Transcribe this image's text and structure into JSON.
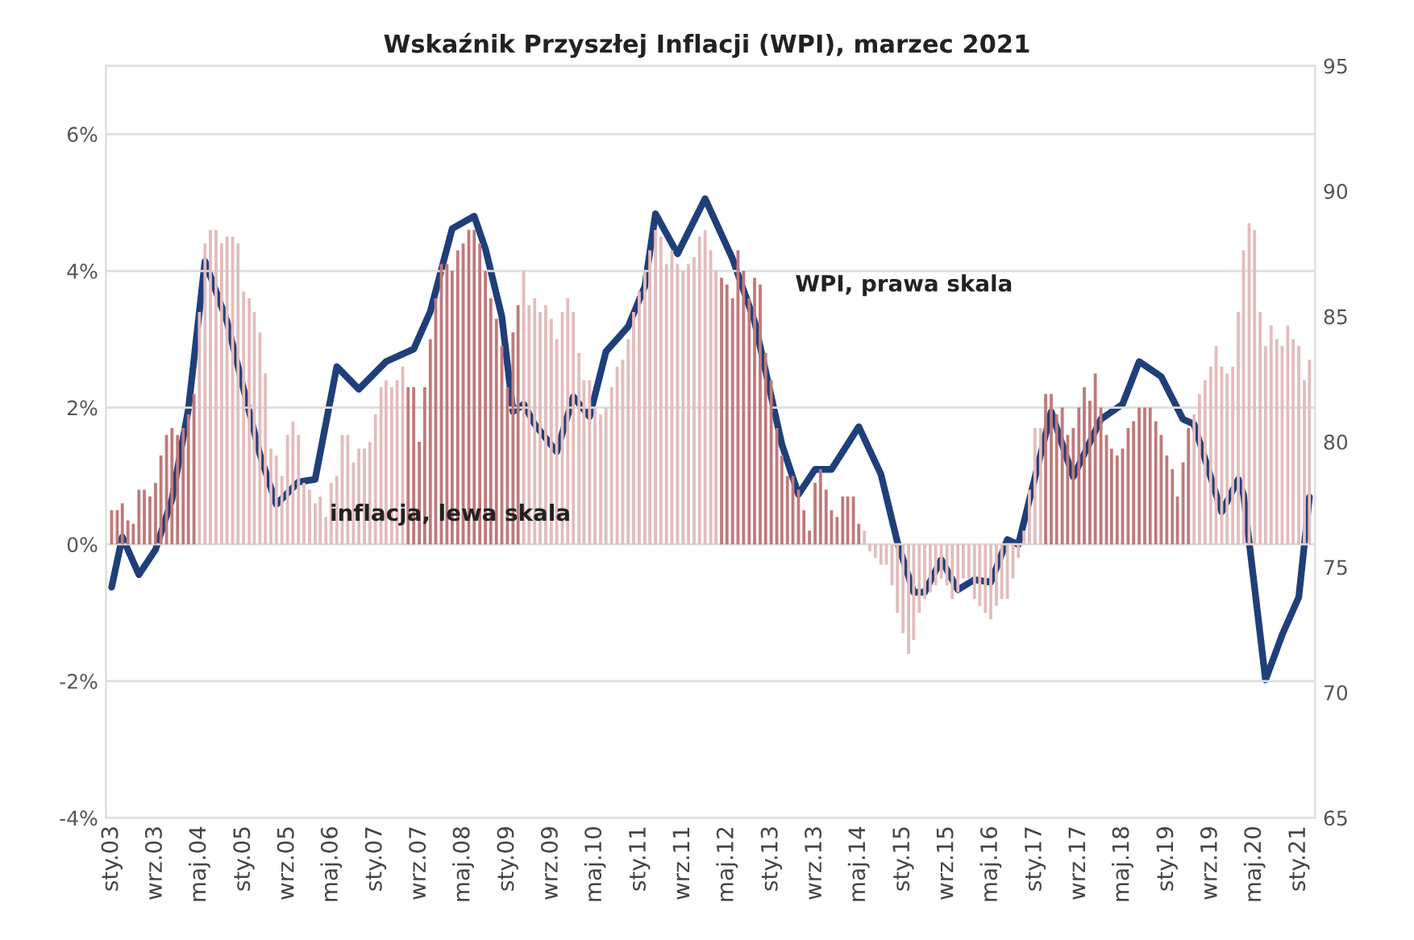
{
  "chart_data": {
    "type": "bar",
    "title": "Wskaźnik Przyszłej Inflacji (WPI), marzec 2021",
    "x": [
      "2003-01",
      "2003-02",
      "2003-03",
      "2003-04",
      "2003-05",
      "2003-06",
      "2003-07",
      "2003-08",
      "2003-09",
      "2003-10",
      "2003-11",
      "2003-12",
      "2004-01",
      "2004-02",
      "2004-03",
      "2004-04",
      "2004-05",
      "2004-06",
      "2004-07",
      "2004-08",
      "2004-09",
      "2004-10",
      "2004-11",
      "2004-12",
      "2005-01",
      "2005-02",
      "2005-03",
      "2005-04",
      "2005-05",
      "2005-06",
      "2005-07",
      "2005-08",
      "2005-09",
      "2005-10",
      "2005-11",
      "2005-12",
      "2006-01",
      "2006-02",
      "2006-03",
      "2006-04",
      "2006-05",
      "2006-06",
      "2006-07",
      "2006-08",
      "2006-09",
      "2006-10",
      "2006-11",
      "2006-12",
      "2007-01",
      "2007-02",
      "2007-03",
      "2007-04",
      "2007-05",
      "2007-06",
      "2007-07",
      "2007-08",
      "2007-09",
      "2007-10",
      "2007-11",
      "2007-12",
      "2008-01",
      "2008-02",
      "2008-03",
      "2008-04",
      "2008-05",
      "2008-06",
      "2008-07",
      "2008-08",
      "2008-09",
      "2008-10",
      "2008-11",
      "2008-12",
      "2009-01",
      "2009-02",
      "2009-03",
      "2009-04",
      "2009-05",
      "2009-06",
      "2009-07",
      "2009-08",
      "2009-09",
      "2009-10",
      "2009-11",
      "2009-12",
      "2010-01",
      "2010-02",
      "2010-03",
      "2010-04",
      "2010-05",
      "2010-06",
      "2010-07",
      "2010-08",
      "2010-09",
      "2010-10",
      "2010-11",
      "2010-12",
      "2011-01",
      "2011-02",
      "2011-03",
      "2011-04",
      "2011-05",
      "2011-06",
      "2011-07",
      "2011-08",
      "2011-09",
      "2011-10",
      "2011-11",
      "2011-12",
      "2012-01",
      "2012-02",
      "2012-03",
      "2012-04",
      "2012-05",
      "2012-06",
      "2012-07",
      "2012-08",
      "2012-09",
      "2012-10",
      "2012-11",
      "2012-12",
      "2013-01",
      "2013-02",
      "2013-03",
      "2013-04",
      "2013-05",
      "2013-06",
      "2013-07",
      "2013-08",
      "2013-09",
      "2013-10",
      "2013-11",
      "2013-12",
      "2014-01",
      "2014-02",
      "2014-03",
      "2014-04",
      "2014-05",
      "2014-06",
      "2014-07",
      "2014-08",
      "2014-09",
      "2014-10",
      "2014-11",
      "2014-12",
      "2015-01",
      "2015-02",
      "2015-03",
      "2015-04",
      "2015-05",
      "2015-06",
      "2015-07",
      "2015-08",
      "2015-09",
      "2015-10",
      "2015-11",
      "2015-12",
      "2016-01",
      "2016-02",
      "2016-03",
      "2016-04",
      "2016-05",
      "2016-06",
      "2016-07",
      "2016-08",
      "2016-09",
      "2016-10",
      "2016-11",
      "2016-12",
      "2017-01",
      "2017-02",
      "2017-03",
      "2017-04",
      "2017-05",
      "2017-06",
      "2017-07",
      "2017-08",
      "2017-09",
      "2017-10",
      "2017-11",
      "2017-12",
      "2018-01",
      "2018-02",
      "2018-03",
      "2018-04",
      "2018-05",
      "2018-06",
      "2018-07",
      "2018-08",
      "2018-09",
      "2018-10",
      "2018-11",
      "2018-12",
      "2019-01",
      "2019-02",
      "2019-03",
      "2019-04",
      "2019-05",
      "2019-06",
      "2019-07",
      "2019-08",
      "2019-09",
      "2019-10",
      "2019-11",
      "2019-12",
      "2020-01",
      "2020-02",
      "2020-03",
      "2020-04",
      "2020-05",
      "2020-06",
      "2020-07",
      "2020-08",
      "2020-09",
      "2020-10",
      "2020-11",
      "2020-12",
      "2021-01",
      "2021-02",
      "2021-03"
    ],
    "series": [
      {
        "name": "inflacja, lewa skala",
        "values": [
          0.5,
          0.5,
          0.6,
          0.35,
          0.3,
          0.8,
          0.8,
          0.7,
          0.9,
          1.3,
          1.6,
          1.7,
          1.6,
          1.7,
          1.9,
          2.2,
          3.4,
          4.4,
          4.6,
          4.6,
          4.4,
          4.5,
          4.5,
          4.4,
          3.7,
          3.6,
          3.4,
          3.1,
          2.5,
          1.4,
          1.3,
          1.0,
          1.6,
          1.8,
          1.6,
          0.9,
          0.8,
          0.6,
          0.7,
          0.4,
          0.9,
          1.0,
          1.6,
          1.6,
          1.2,
          1.4,
          1.4,
          1.5,
          1.9,
          2.3,
          2.4,
          2.3,
          2.4,
          2.6,
          2.3,
          2.3,
          1.5,
          2.3,
          3.0,
          3.6,
          4.1,
          4.1,
          4.0,
          4.3,
          4.4,
          4.6,
          4.6,
          4.4,
          4.0,
          3.6,
          3.3,
          2.9,
          2.3,
          3.1,
          3.5,
          4.0,
          3.5,
          3.6,
          3.4,
          3.5,
          3.3,
          3.0,
          3.4,
          3.6,
          3.4,
          2.8,
          2.4,
          2.4,
          2.0,
          1.9,
          2.0,
          2.3,
          2.6,
          2.7,
          3.0,
          3.4,
          3.7,
          4.0,
          4.3,
          4.6,
          4.5,
          4.1,
          4.3,
          4.1,
          4.0,
          4.1,
          4.2,
          4.5,
          4.6,
          4.3,
          4.0,
          3.9,
          3.8,
          3.6,
          4.3,
          4.0,
          3.6,
          3.9,
          3.8,
          2.8,
          2.4,
          1.7,
          1.3,
          1.0,
          1.0,
          0.8,
          0.5,
          0.2,
          0.9,
          1.1,
          0.8,
          0.5,
          0.4,
          0.7,
          0.7,
          0.7,
          0.3,
          0.2,
          -0.1,
          -0.2,
          -0.3,
          -0.3,
          -0.6,
          -1.0,
          -1.3,
          -1.6,
          -1.4,
          -1.0,
          -0.8,
          -0.7,
          -0.6,
          -0.5,
          -0.6,
          -0.8,
          -0.7,
          -0.5,
          -0.5,
          -0.8,
          -0.9,
          -1.0,
          -1.1,
          -0.9,
          -0.8,
          -0.8,
          -0.5,
          -0.2,
          0.2,
          0.8,
          1.7,
          1.7,
          2.2,
          2.2,
          1.9,
          2.0,
          1.6,
          1.7,
          2.0,
          2.3,
          2.1,
          2.5,
          2.0,
          1.6,
          1.4,
          1.3,
          1.4,
          1.7,
          1.8,
          2.0,
          2.0,
          2.0,
          1.8,
          1.6,
          1.3,
          1.1,
          0.7,
          1.2,
          1.7,
          1.9,
          2.2,
          2.4,
          2.6,
          2.9,
          2.6,
          2.5,
          2.6,
          3.4,
          4.3,
          4.7,
          4.6,
          3.4,
          2.9,
          3.2,
          3.0,
          2.9,
          3.2,
          3.0,
          2.9,
          2.4,
          2.7
        ],
        "colors": [
          "#c0797b",
          "#c0797b",
          "#c0797b",
          "#c0797b",
          "#c0797b",
          "#c0797b",
          "#c0797b",
          "#c0797b",
          "#c0797b",
          "#c0797b",
          "#c0797b",
          "#c0797b",
          "#c0797b",
          "#c0797b",
          "#c0797b",
          "#c0797b",
          "#e3bcbc",
          "#e3bcbc",
          "#e3bcbc",
          "#e3bcbc",
          "#e3bcbc",
          "#e3bcbc",
          "#e3bcbc",
          "#e3bcbc",
          "#e3bcbc",
          "#e3bcbc",
          "#e3bcbc",
          "#e3bcbc",
          "#e3bcbc",
          "#e3bcbc",
          "#e3bcbc",
          "#e3bcbc",
          "#e3bcbc",
          "#e3bcbc",
          "#e3bcbc",
          "#e3bcbc",
          "#e3bcbc",
          "#e3bcbc",
          "#e3bcbc",
          "#e3bcbc",
          "#e3bcbc",
          "#e3bcbc",
          "#e3bcbc",
          "#e3bcbc",
          "#e3bcbc",
          "#e3bcbc",
          "#e3bcbc",
          "#e3bcbc",
          "#e3bcbc",
          "#e3bcbc",
          "#e3bcbc",
          "#e3bcbc",
          "#e3bcbc",
          "#e3bcbc",
          "#c0797b",
          "#c0797b",
          "#c0797b",
          "#c0797b",
          "#c0797b",
          "#c0797b",
          "#c0797b",
          "#c0797b",
          "#c0797b",
          "#c0797b",
          "#c0797b",
          "#c0797b",
          "#c0797b",
          "#c0797b",
          "#c0797b",
          "#c0797b",
          "#c0797b",
          "#c0797b",
          "#c0797b",
          "#c0797b",
          "#c0797b",
          "#e3bcbc",
          "#e3bcbc",
          "#e3bcbc",
          "#e3bcbc",
          "#e3bcbc",
          "#e3bcbc",
          "#e3bcbc",
          "#e3bcbc",
          "#e3bcbc",
          "#e3bcbc",
          "#e3bcbc",
          "#e3bcbc",
          "#e3bcbc",
          "#e3bcbc",
          "#e3bcbc",
          "#e3bcbc",
          "#e3bcbc",
          "#e3bcbc",
          "#e3bcbc",
          "#e3bcbc",
          "#e3bcbc",
          "#e3bcbc",
          "#e3bcbc",
          "#e3bcbc",
          "#e3bcbc",
          "#e3bcbc",
          "#e3bcbc",
          "#e3bcbc",
          "#e3bcbc",
          "#e3bcbc",
          "#e3bcbc",
          "#e3bcbc",
          "#e3bcbc",
          "#e3bcbc",
          "#e3bcbc",
          "#e3bcbc",
          "#c0797b",
          "#c0797b",
          "#c0797b",
          "#c0797b",
          "#c0797b",
          "#c0797b",
          "#c0797b",
          "#c0797b",
          "#c0797b",
          "#c0797b",
          "#c0797b",
          "#c0797b",
          "#c0797b",
          "#c0797b",
          "#c0797b",
          "#c0797b",
          "#c0797b",
          "#c0797b",
          "#c0797b",
          "#c0797b",
          "#c0797b",
          "#c0797b",
          "#c0797b",
          "#c0797b",
          "#c0797b",
          "#c0797b",
          "#e3bcbc",
          "#e3bcbc",
          "#e3bcbc",
          "#e3bcbc",
          "#e3bcbc",
          "#e3bcbc",
          "#e3bcbc",
          "#e3bcbc",
          "#e3bcbc",
          "#e3bcbc",
          "#e3bcbc",
          "#e3bcbc",
          "#e3bcbc",
          "#e3bcbc",
          "#e3bcbc",
          "#e3bcbc",
          "#e3bcbc",
          "#e3bcbc",
          "#e3bcbc",
          "#e3bcbc",
          "#e3bcbc",
          "#e3bcbc",
          "#e3bcbc",
          "#e3bcbc",
          "#e3bcbc",
          "#e3bcbc",
          "#e3bcbc",
          "#e3bcbc",
          "#e3bcbc",
          "#e3bcbc",
          "#e3bcbc",
          "#e3bcbc",
          "#e3bcbc",
          "#c0797b",
          "#c0797b",
          "#c0797b",
          "#c0797b",
          "#c0797b",
          "#c0797b",
          "#c0797b",
          "#c0797b",
          "#c0797b",
          "#c0797b",
          "#c0797b",
          "#c0797b",
          "#c0797b",
          "#c0797b",
          "#c0797b",
          "#c0797b",
          "#c0797b",
          "#c0797b",
          "#c0797b",
          "#c0797b",
          "#c0797b",
          "#c0797b",
          "#c0797b",
          "#c0797b",
          "#c0797b",
          "#c0797b",
          "#c0797b",
          "#e3bcbc",
          "#e3bcbc",
          "#e3bcbc",
          "#e3bcbc",
          "#e3bcbc",
          "#e3bcbc",
          "#e3bcbc",
          "#e3bcbc",
          "#e3bcbc",
          "#e3bcbc",
          "#e3bcbc",
          "#e3bcbc",
          "#e3bcbc",
          "#e3bcbc",
          "#e3bcbc",
          "#e3bcbc",
          "#e3bcbc",
          "#e3bcbc",
          "#e3bcbc",
          "#e3bcbc",
          "#e3bcbc",
          "#e3bcbc"
        ]
      },
      {
        "name": "WPI, prawa skala",
        "type": "line",
        "axis": "y2",
        "color": "#1f3f7a",
        "x": [
          "2003-01",
          "2003-03",
          "2003-06",
          "2003-09",
          "2003-12",
          "2004-03",
          "2004-06",
          "2004-10",
          "2005-01",
          "2005-04",
          "2005-07",
          "2005-11",
          "2006-02",
          "2006-06",
          "2006-10",
          "2007-03",
          "2007-08",
          "2007-11",
          "2008-03",
          "2008-07",
          "2008-09",
          "2008-12",
          "2009-02",
          "2009-04",
          "2009-06",
          "2009-10",
          "2010-01",
          "2010-04",
          "2010-07",
          "2010-11",
          "2011-02",
          "2011-04",
          "2011-08",
          "2012-01",
          "2012-06",
          "2012-10",
          "2013-03",
          "2013-06",
          "2013-09",
          "2013-12",
          "2014-05",
          "2014-09",
          "2014-12",
          "2015-03",
          "2015-05",
          "2015-08",
          "2015-11",
          "2016-02",
          "2016-05",
          "2016-08",
          "2016-10",
          "2017-04",
          "2017-08",
          "2018-01",
          "2018-05",
          "2018-08",
          "2018-12",
          "2019-04",
          "2019-06",
          "2019-11",
          "2020-02",
          "2020-03",
          "2020-07",
          "2020-10",
          "2021-01",
          "2021-03"
        ],
        "values": [
          74.2,
          76.2,
          74.7,
          75.7,
          77.7,
          81.3,
          87.2,
          84.8,
          82.1,
          79.5,
          77.5,
          78.4,
          78.5,
          83.0,
          82.1,
          83.2,
          83.7,
          85.2,
          88.5,
          89.0,
          87.7,
          85.0,
          81.2,
          81.5,
          80.7,
          79.6,
          81.8,
          81.0,
          83.6,
          84.6,
          86.2,
          89.1,
          87.5,
          89.7,
          87.3,
          84.8,
          79.9,
          77.9,
          78.9,
          78.9,
          80.6,
          78.7,
          76.0,
          74.0,
          74.0,
          75.3,
          74.1,
          74.5,
          74.4,
          76.1,
          75.9,
          81.2,
          78.6,
          80.9,
          81.5,
          83.2,
          82.6,
          80.9,
          80.7,
          77.2,
          78.5,
          77.9,
          70.5,
          72.3,
          73.8,
          77.8
        ]
      }
    ],
    "xlim": [
      "2002-12",
      "2021-04"
    ],
    "xticks": [
      {
        "value": "2003-01",
        "label": "sty.03"
      },
      {
        "value": "2003-09",
        "label": "wrz.03"
      },
      {
        "value": "2004-05",
        "label": "maj.04"
      },
      {
        "value": "2005-01",
        "label": "sty.05"
      },
      {
        "value": "2005-09",
        "label": "wrz.05"
      },
      {
        "value": "2006-05",
        "label": "maj.06"
      },
      {
        "value": "2007-01",
        "label": "sty.07"
      },
      {
        "value": "2007-09",
        "label": "wrz.07"
      },
      {
        "value": "2008-05",
        "label": "maj.08"
      },
      {
        "value": "2009-01",
        "label": "sty.09"
      },
      {
        "value": "2009-09",
        "label": "wrz.09"
      },
      {
        "value": "2010-05",
        "label": "maj.10"
      },
      {
        "value": "2011-01",
        "label": "sty.11"
      },
      {
        "value": "2011-09",
        "label": "wrz.11"
      },
      {
        "value": "2012-05",
        "label": "maj.12"
      },
      {
        "value": "2013-01",
        "label": "sty.13"
      },
      {
        "value": "2013-09",
        "label": "wrz.13"
      },
      {
        "value": "2014-05",
        "label": "maj.14"
      },
      {
        "value": "2015-01",
        "label": "sty.15"
      },
      {
        "value": "2015-09",
        "label": "wrz.15"
      },
      {
        "value": "2016-05",
        "label": "maj.16"
      },
      {
        "value": "2017-01",
        "label": "sty.17"
      },
      {
        "value": "2017-09",
        "label": "wrz.17"
      },
      {
        "value": "2018-05",
        "label": "maj.18"
      },
      {
        "value": "2019-01",
        "label": "sty.19"
      },
      {
        "value": "2019-09",
        "label": "wrz.19"
      },
      {
        "value": "2020-05",
        "label": "maj.20"
      },
      {
        "value": "2021-01",
        "label": "sty.21"
      }
    ],
    "ylim": [
      -4,
      7
    ],
    "yticks": [
      {
        "value": -4,
        "label": "-4%"
      },
      {
        "value": -2,
        "label": "-2%"
      },
      {
        "value": 0,
        "label": "0%"
      },
      {
        "value": 2,
        "label": "2%"
      },
      {
        "value": 4,
        "label": "4%"
      },
      {
        "value": 6,
        "label": "6%"
      }
    ],
    "y2lim": [
      65,
      95
    ],
    "y2ticks": [
      65,
      70,
      75,
      80,
      85,
      90,
      95
    ],
    "grid": "y",
    "legend": false
  }
}
